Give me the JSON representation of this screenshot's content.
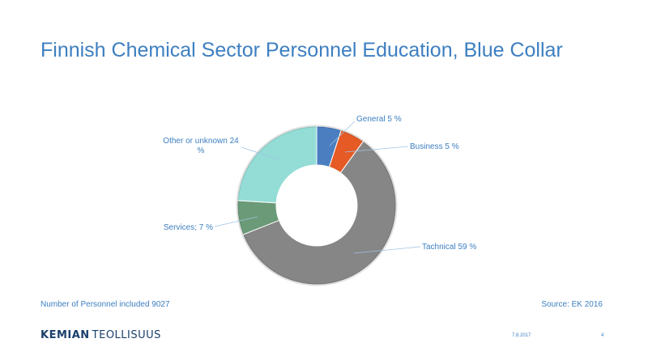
{
  "slide": {
    "title": "Finnish Chemical Sector Personnel Education, Blue Collar",
    "footnote_left": "Number of Personnel included 9027",
    "footnote_right": "Source: EK 2016",
    "date": "7.8.2017",
    "page_number": "4"
  },
  "logo": {
    "bold_part": "KEMIAN",
    "regular_part": "TEOLLISUUS",
    "color": "#1a3f6b"
  },
  "colors": {
    "title": "#3d7fc1",
    "label_text": "#3d7fc1"
  },
  "chart_data": {
    "type": "pie",
    "variant": "donut",
    "title": "",
    "legend": "none",
    "slices": [
      {
        "name": "General",
        "value": 5,
        "label": "General 5 %",
        "color": "#4a7ec0"
      },
      {
        "name": "Business",
        "value": 5,
        "label": "Business 5 %",
        "color": "#e55a25"
      },
      {
        "name": "Tachnical",
        "value": 59,
        "label": "Tachnical 59 %",
        "color": "#868686"
      },
      {
        "name": "Services",
        "value": 7,
        "label": "Services; 7 %",
        "color": "#6b9a78"
      },
      {
        "name": "Other or unknown",
        "value": 24,
        "label": "Other or unknown 24 %",
        "color": "#93ddd6"
      }
    ]
  }
}
